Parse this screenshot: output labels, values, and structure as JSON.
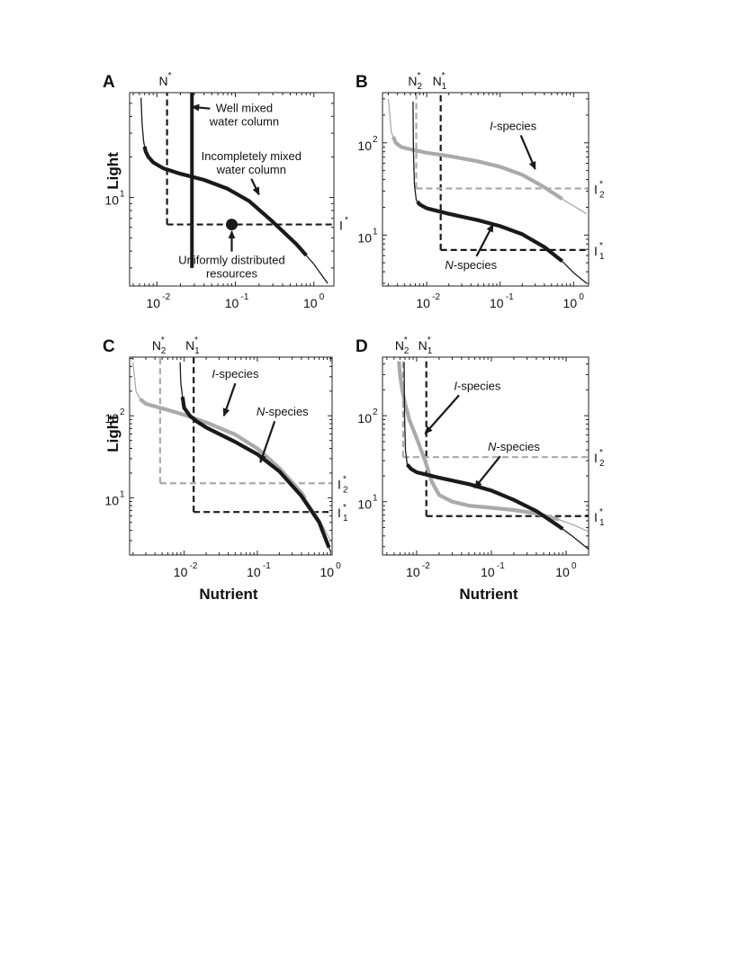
{
  "colors": {
    "dark": "#1a1a1a",
    "light": "#aaaaaa",
    "frame": "#222222"
  },
  "axes": {
    "ylabel": "Light",
    "xlabel": "Nutrient"
  },
  "chart_data": [
    {
      "panel": "A",
      "type": "line",
      "xscale": "log",
      "yscale": "log",
      "xlim": [
        0.0045,
        1.8
      ],
      "ylim": [
        2.2,
        60
      ],
      "xticks": [
        {
          "v": 0.01,
          "e": "-2"
        },
        {
          "v": 0.1,
          "e": "-1"
        },
        {
          "v": 1,
          "e": "0"
        }
      ],
      "yticks": [
        {
          "v": 10,
          "e": "1"
        }
      ],
      "series": [
        {
          "color": "dark",
          "x": [
            0.0063,
            0.0065,
            0.0068,
            0.0072,
            0.0078,
            0.009,
            0.012,
            0.02,
            0.04,
            0.08,
            0.15,
            0.3,
            0.6,
            1.0,
            1.5
          ],
          "y": [
            55,
            35,
            26,
            22,
            20,
            18.2,
            16.5,
            15,
            13.5,
            11.6,
            9.4,
            6.6,
            4.5,
            3.2,
            2.3
          ],
          "thick": [
            [
              0.007,
              0.8
            ]
          ]
        }
      ],
      "vlines": [
        {
          "x": 0.0135,
          "ymin": 6.3,
          "ymax": 60,
          "style": "dash",
          "color": "dark"
        },
        {
          "x": 0.028,
          "ymin": 3.0,
          "ymax": 60,
          "style": "solid",
          "color": "dark"
        }
      ],
      "hlines": [
        {
          "y": 6.3,
          "xmin": 0.0135,
          "xmax": 1.8,
          "style": "dash",
          "color": "dark"
        }
      ],
      "points": [
        {
          "x": 0.09,
          "y": 6.3
        }
      ],
      "threshold_labels": [
        {
          "text": "N",
          "sup": "*",
          "sub": "",
          "axis": "top",
          "at": 0.0135
        },
        {
          "text": "I",
          "sup": "*",
          "sub": "",
          "axis": "right",
          "at": 6.3
        }
      ],
      "annotations": [
        {
          "lines": [
            "Well mixed",
            "water column"
          ],
          "tx": 0.13,
          "ty": 43,
          "ax": 0.028,
          "ay": 47
        },
        {
          "lines": [
            "Incompletely mixed",
            "water column"
          ],
          "tx": 0.16,
          "ty": 19,
          "ax": 0.2,
          "ay": 10.5
        },
        {
          "lines": [
            "Uniformly distributed",
            "resources"
          ],
          "tx": 0.09,
          "ty": 3.2,
          "ax": 0.09,
          "ay": 5.6
        }
      ]
    },
    {
      "panel": "B",
      "type": "line",
      "xscale": "log",
      "yscale": "log",
      "xlim": [
        0.0025,
        1.6
      ],
      "ylim": [
        2.8,
        350
      ],
      "xticks": [
        {
          "v": 0.01,
          "e": "-2"
        },
        {
          "v": 0.1,
          "e": "-1"
        },
        {
          "v": 1,
          "e": "0"
        }
      ],
      "yticks": [
        {
          "v": 10,
          "e": "1"
        },
        {
          "v": 100,
          "e": "2"
        }
      ],
      "series": [
        {
          "name": "I-species",
          "color": "light",
          "x": [
            0.003,
            0.0033,
            0.0038,
            0.0045,
            0.006,
            0.01,
            0.02,
            0.05,
            0.1,
            0.2,
            0.4,
            0.8,
            1.5
          ],
          "y": [
            300,
            130,
            100,
            90,
            85,
            78,
            72,
            63,
            55,
            45,
            33,
            23,
            17
          ],
          "thick": [
            [
              0.0035,
              0.7
            ]
          ]
        },
        {
          "name": "N-species",
          "color": "dark",
          "x": [
            0.0065,
            0.0066,
            0.0068,
            0.0072,
            0.008,
            0.01,
            0.02,
            0.05,
            0.1,
            0.2,
            0.4,
            0.7,
            1.0,
            1.5
          ],
          "y": [
            280,
            80,
            35,
            24,
            21.5,
            19.5,
            17,
            14.5,
            12.5,
            10.2,
            7.4,
            5.2,
            3.9,
            3.0
          ],
          "thick": [
            [
              0.0075,
              0.7
            ]
          ]
        }
      ],
      "vlines": [
        {
          "x": 0.0072,
          "ymin": 32,
          "ymax": 350,
          "style": "dash",
          "color": "light"
        },
        {
          "x": 0.0155,
          "ymin": 6.9,
          "ymax": 350,
          "style": "dash",
          "color": "dark"
        }
      ],
      "hlines": [
        {
          "y": 32,
          "xmin": 0.0072,
          "xmax": 1.6,
          "style": "dash",
          "color": "light"
        },
        {
          "y": 6.9,
          "xmin": 0.0155,
          "xmax": 1.6,
          "style": "dash",
          "color": "dark"
        }
      ],
      "points": [],
      "threshold_labels": [
        {
          "text": "N",
          "sup": "*",
          "sub": "2",
          "axis": "top",
          "at": 0.0072
        },
        {
          "text": "N",
          "sup": "*",
          "sub": "1",
          "axis": "top",
          "at": 0.0155
        },
        {
          "text": "I",
          "sup": "*",
          "sub": "2",
          "axis": "right",
          "at": 32
        },
        {
          "text": "I",
          "sup": "*",
          "sub": "1",
          "axis": "right",
          "at": 6.9
        }
      ],
      "annotations": [
        {
          "lines": [
            "I-species"
          ],
          "italic_prefix": "I",
          "tx": 0.15,
          "ty": 138,
          "ax": 0.3,
          "ay": 52
        },
        {
          "lines": [
            "N-species"
          ],
          "italic_prefix": "N",
          "tx": 0.04,
          "ty": 4.3,
          "ax": 0.08,
          "ay": 13
        }
      ]
    },
    {
      "panel": "C",
      "type": "line",
      "xscale": "log",
      "yscale": "log",
      "xlim": [
        0.0018,
        1.05
      ],
      "ylim": [
        2.0,
        520
      ],
      "xticks": [
        {
          "v": 0.01,
          "e": "-2"
        },
        {
          "v": 0.1,
          "e": "-1"
        },
        {
          "v": 1,
          "e": "0"
        }
      ],
      "yticks": [
        {
          "v": 10,
          "e": "1"
        },
        {
          "v": 100,
          "e": "2"
        }
      ],
      "series": [
        {
          "name": "I-species",
          "color": "light",
          "x": [
            0.002,
            0.0022,
            0.0025,
            0.003,
            0.004,
            0.006,
            0.01,
            0.02,
            0.05,
            0.1,
            0.2,
            0.4,
            0.7,
            1.0
          ],
          "y": [
            450,
            200,
            160,
            140,
            130,
            118,
            103,
            83,
            59,
            40,
            23,
            11.5,
            5.5,
            3.0
          ],
          "thick": [
            [
              0.0025,
              0.45
            ]
          ]
        },
        {
          "name": "N-species",
          "color": "dark",
          "x": [
            0.0088,
            0.009,
            0.0095,
            0.01,
            0.012,
            0.015,
            0.02,
            0.05,
            0.1,
            0.2,
            0.4,
            0.7,
            1.0
          ],
          "y": [
            450,
            250,
            170,
            125,
            100,
            85,
            72,
            48,
            34,
            21,
            10.5,
            5.0,
            2.2
          ],
          "thick": [
            [
              0.0095,
              0.95
            ]
          ]
        }
      ],
      "vlines": [
        {
          "x": 0.0047,
          "ymin": 15,
          "ymax": 520,
          "style": "dash",
          "color": "light"
        },
        {
          "x": 0.0135,
          "ymin": 6.7,
          "ymax": 520,
          "style": "dash",
          "color": "dark"
        }
      ],
      "hlines": [
        {
          "y": 15,
          "xmin": 0.0047,
          "xmax": 1.05,
          "style": "dash",
          "color": "light"
        },
        {
          "y": 6.7,
          "xmin": 0.0135,
          "xmax": 1.05,
          "style": "dash",
          "color": "dark"
        }
      ],
      "points": [],
      "threshold_labels": [
        {
          "text": "N",
          "sup": "*",
          "sub": "2",
          "axis": "top",
          "at": 0.0047
        },
        {
          "text": "N",
          "sup": "*",
          "sub": "1",
          "axis": "top",
          "at": 0.0135
        },
        {
          "text": "I",
          "sup": "*",
          "sub": "2",
          "axis": "right",
          "at": 15
        },
        {
          "text": "I",
          "sup": "*",
          "sub": "1",
          "axis": "right",
          "at": 6.7
        }
      ],
      "annotations": [
        {
          "lines": [
            "I-species"
          ],
          "italic_prefix": "I",
          "tx": 0.05,
          "ty": 290,
          "ax": 0.035,
          "ay": 100
        },
        {
          "lines": [
            "N-species"
          ],
          "italic_prefix": "N",
          "tx": 0.22,
          "ty": 100,
          "ax": 0.11,
          "ay": 27
        }
      ]
    },
    {
      "panel": "D",
      "type": "line",
      "xscale": "log",
      "yscale": "log",
      "xlim": [
        0.0035,
        2.0
      ],
      "ylim": [
        2.4,
        480
      ],
      "xticks": [
        {
          "v": 0.01,
          "e": "-2"
        },
        {
          "v": 0.1,
          "e": "-1"
        },
        {
          "v": 1,
          "e": "0"
        }
      ],
      "yticks": [
        {
          "v": 10,
          "e": "1"
        },
        {
          "v": 100,
          "e": "2"
        }
      ],
      "series": [
        {
          "name": "I-species",
          "color": "light",
          "x": [
            0.0058,
            0.006,
            0.0065,
            0.007,
            0.008,
            0.01,
            0.013,
            0.016,
            0.02,
            0.03,
            0.05,
            0.1,
            0.2,
            0.4,
            0.8,
            1.3,
            2.0
          ],
          "y": [
            430,
            300,
            190,
            140,
            90,
            55,
            30,
            17,
            12,
            10,
            9,
            8.5,
            8,
            7.3,
            6.2,
            5.3,
            4.5
          ],
          "thick": [
            [
              0.0058,
              0.8
            ]
          ]
        },
        {
          "name": "N-species",
          "color": "dark",
          "x": [
            0.0068,
            0.0069,
            0.0071,
            0.0075,
            0.0085,
            0.01,
            0.02,
            0.05,
            0.1,
            0.2,
            0.4,
            0.8,
            1.2,
            2.0
          ],
          "y": [
            420,
            100,
            40,
            27,
            24,
            22,
            19,
            16,
            13.5,
            10.5,
            7.8,
            5.2,
            4.0,
            2.8
          ],
          "thick": [
            [
              0.0075,
              0.9
            ]
          ]
        }
      ],
      "vlines": [
        {
          "x": 0.0066,
          "ymin": 33,
          "ymax": 480,
          "style": "dash",
          "color": "light"
        },
        {
          "x": 0.0135,
          "ymin": 6.8,
          "ymax": 480,
          "style": "dash",
          "color": "dark"
        }
      ],
      "hlines": [
        {
          "y": 33,
          "xmin": 0.0066,
          "xmax": 2.0,
          "style": "dash",
          "color": "light"
        },
        {
          "y": 6.8,
          "xmin": 0.0135,
          "xmax": 2.0,
          "style": "dash",
          "color": "dark"
        }
      ],
      "points": [],
      "threshold_labels": [
        {
          "text": "N",
          "sup": "*",
          "sub": "2",
          "axis": "top",
          "at": 0.0066
        },
        {
          "text": "N",
          "sup": "*",
          "sub": "1",
          "axis": "top",
          "at": 0.0135
        },
        {
          "text": "I",
          "sup": "*",
          "sub": "2",
          "axis": "right",
          "at": 33
        },
        {
          "text": "I",
          "sup": "*",
          "sub": "1",
          "axis": "right",
          "at": 6.8
        }
      ],
      "annotations": [
        {
          "lines": [
            "I-species"
          ],
          "italic_prefix": "I",
          "tx": 0.065,
          "ty": 200,
          "ax": 0.013,
          "ay": 62
        },
        {
          "lines": [
            "N-species"
          ],
          "italic_prefix": "N",
          "tx": 0.2,
          "ty": 39,
          "ax": 0.06,
          "ay": 14.5
        }
      ]
    }
  ]
}
